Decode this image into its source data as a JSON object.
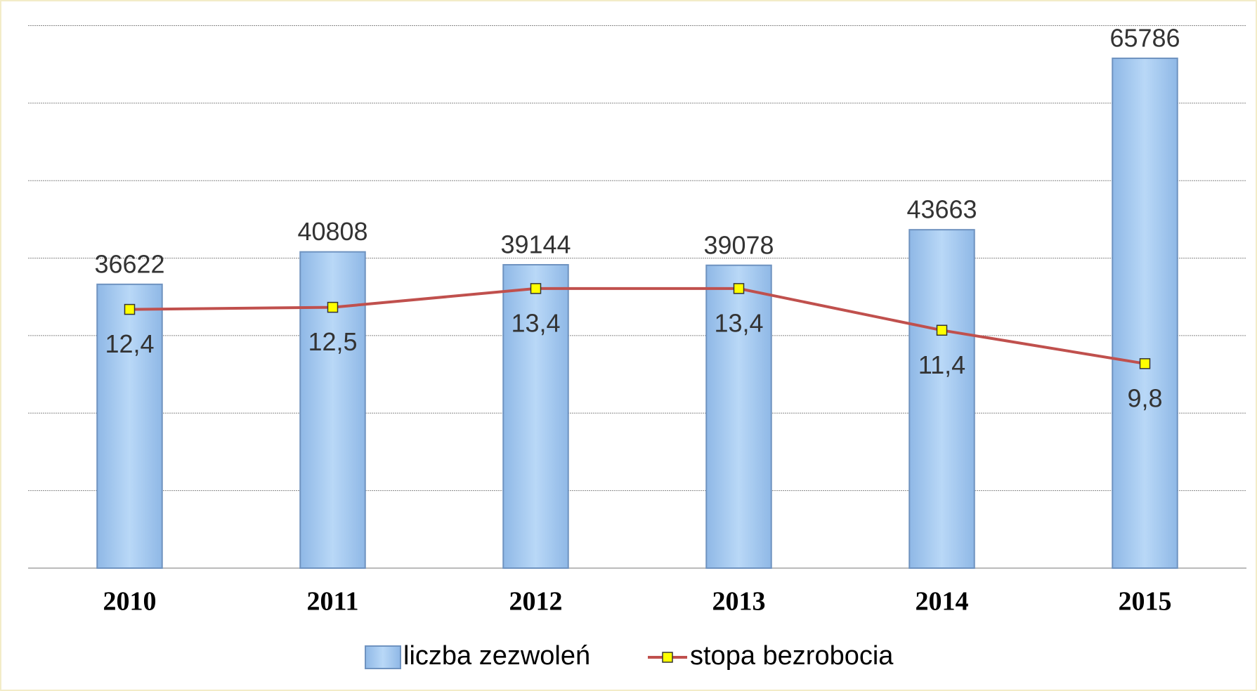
{
  "chart_data": {
    "type": "bar_line",
    "categories": [
      "2010",
      "2011",
      "2012",
      "2013",
      "2014",
      "2015"
    ],
    "series": [
      {
        "name": "liczba zezwoleń",
        "color": "#a6cbf0",
        "values": [
          36622,
          40808,
          39144,
          39078,
          43663,
          65786
        ]
      },
      {
        "name": "stopa bezrobocia",
        "color": "#c0504d",
        "axis": "y2",
        "values": [
          12.4,
          12.5,
          13.4,
          13.4,
          11.4,
          9.8
        ],
        "value_labels": [
          "12,4",
          "12,5",
          "13,4",
          "13,4",
          "11,4",
          "9,8"
        ]
      }
    ],
    "ylim": [
      0,
      70000
    ],
    "yticks": [
      0,
      10000,
      20000,
      30000,
      40000,
      50000,
      60000,
      70000
    ],
    "y2lim": [
      0,
      26
    ],
    "grid": true,
    "legend": "bottom"
  }
}
